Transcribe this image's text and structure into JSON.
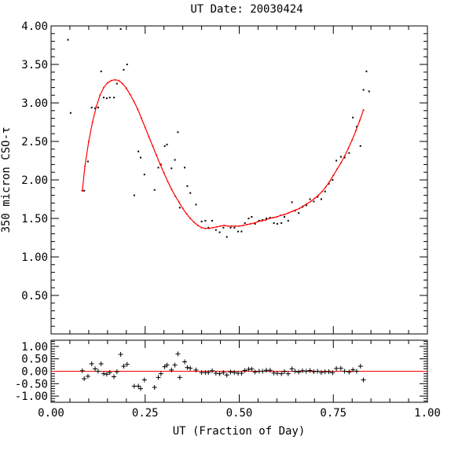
{
  "chart_data": [
    {
      "type": "scatter",
      "title": "UT Date: 20030424",
      "ylabel": "350 micron CSO-τ",
      "xlim": [
        0.0,
        1.0
      ],
      "ylim": [
        0.0,
        4.0
      ],
      "xticks": [
        "0.00",
        "0.25",
        "0.50",
        "0.75",
        "1.00"
      ],
      "yticks": [
        "0.50",
        "1.00",
        "1.50",
        "2.00",
        "2.50",
        "3.00",
        "3.50",
        "4.00"
      ],
      "grid": false,
      "colors": {
        "points": "#000000",
        "fit": "#ff0000"
      },
      "series": [
        {
          "kind": "points",
          "x": [
            0.045,
            0.052,
            0.083,
            0.088,
            0.098,
            0.108,
            0.117,
            0.125,
            0.133,
            0.14,
            0.148,
            0.156,
            0.167,
            0.175,
            0.185,
            0.193,
            0.202,
            0.221,
            0.232,
            0.238,
            0.248,
            0.275,
            0.285,
            0.292,
            0.302,
            0.308,
            0.32,
            0.329,
            0.337,
            0.342,
            0.355,
            0.362,
            0.37,
            0.385,
            0.4,
            0.41,
            0.418,
            0.428,
            0.438,
            0.448,
            0.458,
            0.467,
            0.477,
            0.487,
            0.497,
            0.506,
            0.515,
            0.525,
            0.533,
            0.542,
            0.553,
            0.562,
            0.572,
            0.582,
            0.592,
            0.601,
            0.612,
            0.62,
            0.63,
            0.64,
            0.648,
            0.658,
            0.668,
            0.678,
            0.688,
            0.698,
            0.708,
            0.718,
            0.728,
            0.738,
            0.748,
            0.758,
            0.77,
            0.78,
            0.792,
            0.802,
            0.812,
            0.822,
            0.83,
            0.838,
            0.845
          ],
          "y": [
            3.82,
            2.87,
            1.86,
            1.86,
            2.24,
            2.94,
            2.93,
            2.94,
            3.41,
            3.07,
            3.06,
            3.07,
            3.07,
            3.25,
            3.96,
            3.43,
            3.5,
            1.8,
            2.37,
            2.29,
            2.07,
            1.87,
            2.16,
            2.2,
            2.44,
            2.46,
            2.15,
            2.26,
            2.62,
            1.64,
            2.16,
            1.92,
            1.83,
            1.68,
            1.46,
            1.47,
            1.38,
            1.47,
            1.35,
            1.32,
            1.38,
            1.26,
            1.38,
            1.38,
            1.33,
            1.33,
            1.44,
            1.5,
            1.52,
            1.43,
            1.47,
            1.48,
            1.5,
            1.51,
            1.44,
            1.43,
            1.44,
            1.52,
            1.47,
            1.71,
            1.6,
            1.57,
            1.65,
            1.67,
            1.75,
            1.72,
            1.78,
            1.75,
            1.85,
            1.95,
            2.0,
            2.25,
            2.3,
            2.29,
            2.35,
            2.81,
            2.69,
            2.44,
            3.17,
            3.41,
            3.15
          ]
        },
        {
          "kind": "fit",
          "x": [
            0.083,
            0.09,
            0.1,
            0.11,
            0.12,
            0.13,
            0.14,
            0.15,
            0.16,
            0.17,
            0.18,
            0.19,
            0.2,
            0.21,
            0.22,
            0.23,
            0.24,
            0.25,
            0.26,
            0.27,
            0.28,
            0.29,
            0.3,
            0.31,
            0.32,
            0.33,
            0.34,
            0.35,
            0.36,
            0.37,
            0.38,
            0.39,
            0.4,
            0.41,
            0.42,
            0.43,
            0.44,
            0.45,
            0.46,
            0.47,
            0.48,
            0.49,
            0.5,
            0.51,
            0.52,
            0.53,
            0.54,
            0.55,
            0.56,
            0.57,
            0.58,
            0.59,
            0.6,
            0.61,
            0.62,
            0.63,
            0.64,
            0.65,
            0.66,
            0.67,
            0.68,
            0.69,
            0.7,
            0.71,
            0.72,
            0.73,
            0.74,
            0.75,
            0.76,
            0.77,
            0.78,
            0.79,
            0.8,
            0.81,
            0.82,
            0.83
          ],
          "y": [
            1.86,
            2.18,
            2.5,
            2.75,
            2.95,
            3.1,
            3.2,
            3.26,
            3.29,
            3.3,
            3.29,
            3.25,
            3.19,
            3.11,
            3.02,
            2.92,
            2.8,
            2.68,
            2.56,
            2.44,
            2.32,
            2.2,
            2.09,
            1.98,
            1.88,
            1.79,
            1.71,
            1.63,
            1.56,
            1.5,
            1.45,
            1.41,
            1.38,
            1.37,
            1.37,
            1.38,
            1.39,
            1.4,
            1.41,
            1.4,
            1.4,
            1.4,
            1.4,
            1.41,
            1.42,
            1.43,
            1.44,
            1.46,
            1.47,
            1.48,
            1.5,
            1.51,
            1.52,
            1.54,
            1.55,
            1.57,
            1.59,
            1.61,
            1.63,
            1.66,
            1.69,
            1.72,
            1.76,
            1.8,
            1.85,
            1.91,
            1.98,
            2.06,
            2.14,
            2.22,
            2.31,
            2.41,
            2.52,
            2.64,
            2.77,
            2.91
          ]
        }
      ]
    },
    {
      "type": "scatter",
      "xlabel": "UT (Fraction of Day)",
      "xlim": [
        0.0,
        1.0
      ],
      "ylim": [
        -1.25,
        1.25
      ],
      "xticks": [
        "0.00",
        "0.25",
        "0.50",
        "0.75",
        "1.00"
      ],
      "yticks": [
        "-1.00",
        "-0.50",
        "0.00",
        "0.50",
        "1.00"
      ],
      "grid": false,
      "zero_line": 0.0,
      "colors": {
        "points": "#000000",
        "zero_line": "#ff0000"
      },
      "series": [
        {
          "kind": "residuals",
          "x": [
            0.083,
            0.088,
            0.098,
            0.108,
            0.117,
            0.125,
            0.133,
            0.14,
            0.148,
            0.156,
            0.167,
            0.175,
            0.185,
            0.193,
            0.202,
            0.221,
            0.232,
            0.238,
            0.248,
            0.275,
            0.285,
            0.292,
            0.302,
            0.308,
            0.32,
            0.329,
            0.337,
            0.342,
            0.355,
            0.362,
            0.37,
            0.385,
            0.4,
            0.41,
            0.418,
            0.428,
            0.438,
            0.448,
            0.458,
            0.467,
            0.477,
            0.487,
            0.497,
            0.506,
            0.515,
            0.525,
            0.533,
            0.542,
            0.553,
            0.562,
            0.572,
            0.582,
            0.592,
            0.601,
            0.612,
            0.62,
            0.63,
            0.64,
            0.648,
            0.658,
            0.668,
            0.678,
            0.688,
            0.698,
            0.708,
            0.718,
            0.728,
            0.738,
            0.748,
            0.758,
            0.77,
            0.78,
            0.792,
            0.802,
            0.812,
            0.822,
            0.83
          ],
          "y": [
            0.02,
            -0.3,
            -0.2,
            0.3,
            0.1,
            0.0,
            0.3,
            -0.1,
            -0.12,
            -0.05,
            -0.22,
            -0.02,
            0.68,
            0.2,
            0.28,
            -0.6,
            -0.6,
            -0.7,
            -0.35,
            -0.65,
            -0.25,
            -0.1,
            0.18,
            0.25,
            0.05,
            0.25,
            0.7,
            -0.25,
            0.38,
            0.15,
            0.12,
            0.05,
            -0.05,
            -0.05,
            -0.05,
            0.02,
            -0.08,
            -0.1,
            -0.05,
            -0.15,
            -0.03,
            -0.05,
            -0.08,
            -0.08,
            0.03,
            0.08,
            0.09,
            -0.03,
            0.0,
            0.0,
            0.04,
            0.04,
            -0.07,
            -0.08,
            -0.1,
            -0.01,
            -0.1,
            0.1,
            0.0,
            -0.03,
            0.02,
            0.0,
            0.03,
            -0.02,
            0.0,
            -0.05,
            -0.02,
            -0.02,
            -0.06,
            0.11,
            0.12,
            0.0,
            -0.03,
            0.06,
            0.0,
            0.2,
            -0.35
          ]
        }
      ]
    }
  ]
}
